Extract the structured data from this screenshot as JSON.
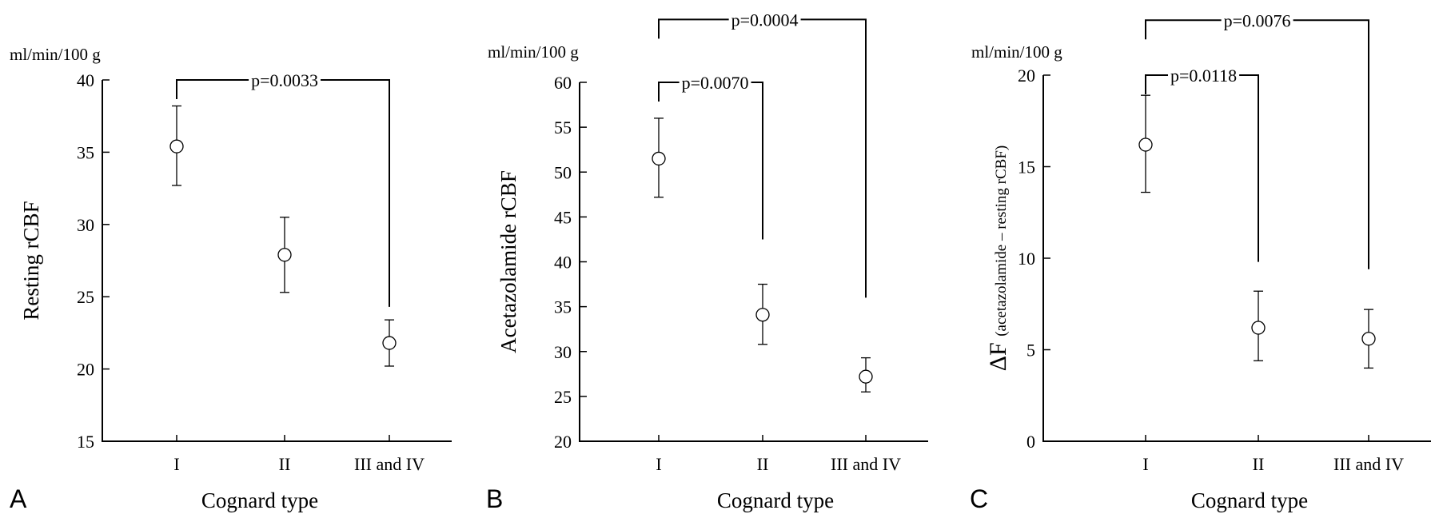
{
  "chart_data": [
    {
      "panel": "A",
      "type": "scatter",
      "unit": "ml/min/100 g",
      "xlabel": "Cognard type",
      "ylabel": "Resting rCBF",
      "categories": [
        "I",
        "II",
        "III and IV"
      ],
      "ylim": [
        15,
        40
      ],
      "yticks": [
        15,
        20,
        25,
        30,
        35,
        40
      ],
      "grid": false,
      "series": [
        {
          "values": [
            35.4,
            27.9,
            21.8
          ],
          "err_low": [
            32.7,
            25.3,
            20.2
          ],
          "err_high": [
            38.2,
            30.5,
            23.4
          ]
        }
      ],
      "annotations": [
        {
          "text": "p=0.0033",
          "from": 0,
          "to": 2,
          "to_bottom": 24.3,
          "level": 40
        }
      ]
    },
    {
      "panel": "B",
      "type": "scatter",
      "unit": "ml/min/100 g",
      "xlabel": "Cognard type",
      "ylabel": "Acetazolamide rCBF",
      "categories": [
        "I",
        "II",
        "III and IV"
      ],
      "ylim": [
        20,
        60
      ],
      "yticks": [
        20,
        25,
        30,
        35,
        40,
        45,
        50,
        55,
        60
      ],
      "grid": false,
      "series": [
        {
          "values": [
            51.5,
            34.1,
            27.2
          ],
          "err_low": [
            47.2,
            30.8,
            25.5
          ],
          "err_high": [
            56.0,
            37.5,
            29.3
          ]
        }
      ],
      "annotations": [
        {
          "text": "p=0.0070",
          "from": 0,
          "to": 1,
          "to_bottom": 42.5,
          "level": 60
        },
        {
          "text": "p=0.0004",
          "from": 0,
          "to": 2,
          "to_bottom": 36.0,
          "level": 67
        }
      ]
    },
    {
      "panel": "C",
      "type": "scatter",
      "unit": "ml/min/100 g",
      "xlabel": "Cognard type",
      "ylabel_main": "ΔF",
      "ylabel_sub": "(acetazolamide – resting rCBF)",
      "categories": [
        "I",
        "II",
        "III and IV"
      ],
      "ylim": [
        0,
        20
      ],
      "yticks": [
        0,
        5,
        10,
        15,
        20
      ],
      "grid": false,
      "series": [
        {
          "values": [
            16.2,
            6.2,
            5.6
          ],
          "err_low": [
            13.6,
            4.4,
            4.0
          ],
          "err_high": [
            18.9,
            8.2,
            7.2
          ]
        }
      ],
      "annotations": [
        {
          "text": "p=0.0118",
          "from": 0,
          "to": 1,
          "to_bottom": 9.8,
          "level": 20
        },
        {
          "text": "p=0.0076",
          "from": 0,
          "to": 2,
          "to_bottom": 9.4,
          "level": 23
        }
      ]
    }
  ]
}
